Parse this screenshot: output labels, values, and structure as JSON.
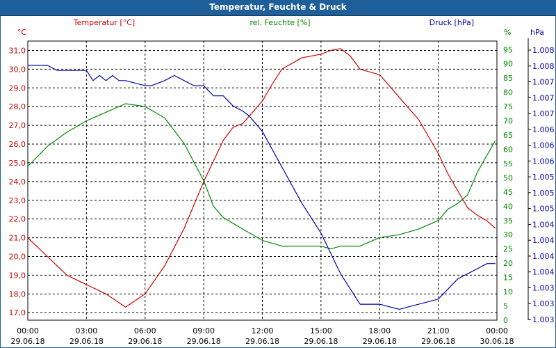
{
  "window": {
    "title": "Temperatur, Feuchte & Druck"
  },
  "colors": {
    "temperature": "#cc0000",
    "humidity": "#008800",
    "pressure": "#0000aa",
    "grid": "#000000",
    "titlebar": "#1f5f99"
  },
  "chart_data": {
    "type": "line",
    "title": "Temperatur, Feuchte & Druck",
    "grid": true,
    "x_ticks": [
      {
        "time": "00:00",
        "date": "29.06.18"
      },
      {
        "time": "03:00",
        "date": "29.06.18"
      },
      {
        "time": "06:00",
        "date": "29.06.18"
      },
      {
        "time": "09:00",
        "date": "29.06.18"
      },
      {
        "time": "12:00",
        "date": "29.06.18"
      },
      {
        "time": "15:00",
        "date": "29.06.18"
      },
      {
        "time": "18:00",
        "date": "29.06.18"
      },
      {
        "time": "21:00",
        "date": "29.06.18"
      },
      {
        "time": "00:00",
        "date": "30.06.18"
      }
    ],
    "axes": {
      "temperature": {
        "label": "Temperatur [°C]",
        "unit": "°C",
        "min": 16.6,
        "max": 31.5,
        "ticks": [
          "17,0",
          "18,0",
          "19,0",
          "20,0",
          "21,0",
          "22,0",
          "23,0",
          "24,0",
          "25,0",
          "26,0",
          "27,0",
          "28,0",
          "29,0",
          "30,0",
          "31,0"
        ]
      },
      "humidity": {
        "label": "rel. Feuchte [%]",
        "unit": "%",
        "min": 0,
        "max": 98,
        "ticks": [
          "0",
          "5",
          "10",
          "15",
          "20",
          "25",
          "30",
          "35",
          "40",
          "45",
          "50",
          "55",
          "60",
          "65",
          "70",
          "75",
          "80",
          "85",
          "90",
          "95"
        ]
      },
      "pressure": {
        "label": "Druck [hPa]",
        "unit": "hPa",
        "ticks": [
          "1.003",
          "1.003",
          "1.003",
          "1.004",
          "1.004",
          "1.004",
          "1.004",
          "1.005",
          "1.005",
          "1.005",
          "1.006",
          "1.006",
          "1.006",
          "1.007",
          "1.007",
          "1.007",
          "1.008",
          "1.008"
        ]
      }
    },
    "series": [
      {
        "name": "Temperatur [°C]",
        "axis": "temperature",
        "x": [
          "00:00",
          "01:00",
          "02:00",
          "03:00",
          "04:00",
          "05:00",
          "06:00",
          "07:00",
          "08:00",
          "09:00",
          "10:00",
          "10:30",
          "11:00",
          "11:30",
          "12:00",
          "12:30",
          "13:00",
          "14:00",
          "15:00",
          "15:30",
          "16:00",
          "16:30",
          "17:00",
          "18:00",
          "19:00",
          "20:00",
          "21:00",
          "21:30",
          "22:00",
          "22:30",
          "23:00",
          "23:30",
          "23:55"
        ],
        "values": [
          21.0,
          20.0,
          19.0,
          18.5,
          18.0,
          17.3,
          18.0,
          19.5,
          21.5,
          24.0,
          26.2,
          26.9,
          27.1,
          27.7,
          28.3,
          29.2,
          30.0,
          30.6,
          30.8,
          31.0,
          31.1,
          30.7,
          30.0,
          29.7,
          28.5,
          27.3,
          25.5,
          24.4,
          23.5,
          22.6,
          22.2,
          21.9,
          21.5
        ]
      },
      {
        "name": "rel. Feuchte [%]",
        "axis": "humidity",
        "x": [
          "00:00",
          "01:00",
          "02:00",
          "03:00",
          "04:00",
          "05:00",
          "06:00",
          "07:00",
          "08:00",
          "09:00",
          "09:30",
          "10:00",
          "11:00",
          "12:00",
          "13:00",
          "14:00",
          "15:00",
          "15:30",
          "16:00",
          "17:00",
          "18:00",
          "19:00",
          "20:00",
          "21:00",
          "21:30",
          "22:00",
          "22:30",
          "23:00",
          "23:30",
          "23:55"
        ],
        "values": [
          54,
          61,
          66,
          70,
          73,
          76,
          75,
          71,
          62,
          49,
          40,
          36,
          32,
          28,
          26,
          26,
          26,
          25,
          26,
          26,
          29,
          30,
          32,
          35,
          39,
          41,
          44,
          52,
          58,
          63
        ]
      },
      {
        "name": "Druck [hPa]",
        "axis": "pressure",
        "x": [
          "00:00",
          "01:00",
          "01:30",
          "02:00",
          "03:00",
          "03:20",
          "03:40",
          "04:00",
          "04:20",
          "04:40",
          "05:00",
          "06:00",
          "06:20",
          "07:00",
          "07:30",
          "08:00",
          "08:30",
          "09:00",
          "09:30",
          "10:00",
          "10:30",
          "11:00",
          "11:20",
          "12:00",
          "13:00",
          "14:00",
          "15:00",
          "16:00",
          "17:00",
          "17:30",
          "18:00",
          "19:00",
          "20:00",
          "21:00",
          "21:30",
          "22:00",
          "22:30",
          "23:00",
          "23:30",
          "23:55"
        ],
        "values": [
          1008.0,
          1008.0,
          1007.9,
          1007.9,
          1007.9,
          1007.7,
          1007.8,
          1007.7,
          1007.8,
          1007.7,
          1007.7,
          1007.6,
          1007.6,
          1007.7,
          1007.8,
          1007.7,
          1007.6,
          1007.6,
          1007.4,
          1007.4,
          1007.2,
          1007.1,
          1007.0,
          1006.7,
          1006.0,
          1005.3,
          1004.7,
          1003.9,
          1003.3,
          1003.3,
          1003.3,
          1003.2,
          1003.3,
          1003.4,
          1003.6,
          1003.8,
          1003.9,
          1004.0,
          1004.1,
          1004.1
        ]
      }
    ]
  }
}
